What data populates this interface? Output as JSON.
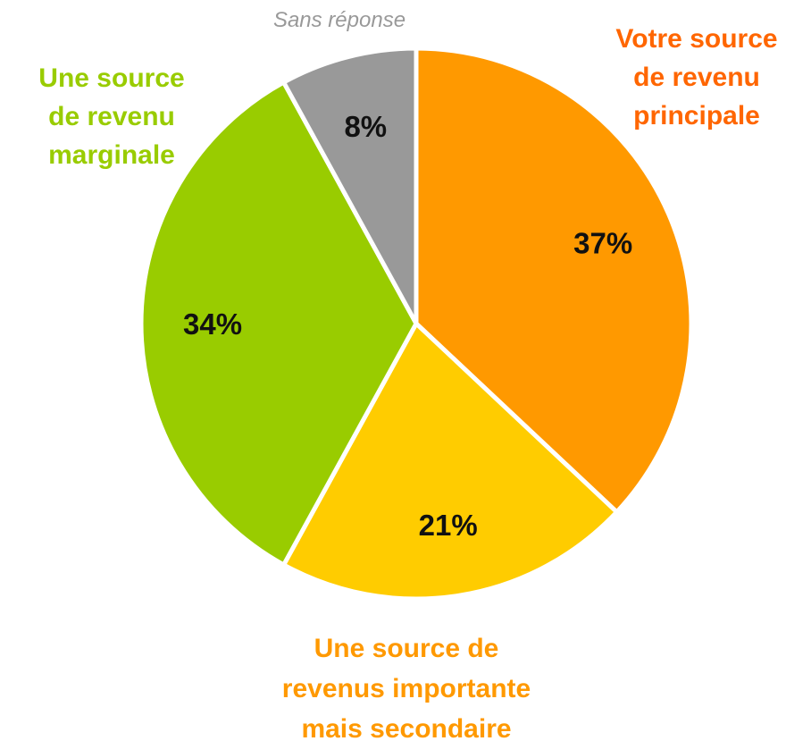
{
  "chart_data": {
    "type": "pie",
    "categories": [
      "Votre source\nde revenu\nprincipale",
      "Une source de\nrevenus importante\nmais secondaire",
      "Une source\nde revenu\nmarginale",
      "Sans réponse"
    ],
    "values": [
      37,
      21,
      34,
      8
    ],
    "value_labels": [
      "37%",
      "21%",
      "34%",
      "8%"
    ],
    "colors": [
      "#FF9900",
      "#FFCC00",
      "#99CC00",
      "#999999"
    ],
    "label_colors": [
      "#FF6600",
      "#FF9900",
      "#99CC00",
      "#999999"
    ],
    "start_angle": 0,
    "direction": "clockwise"
  }
}
